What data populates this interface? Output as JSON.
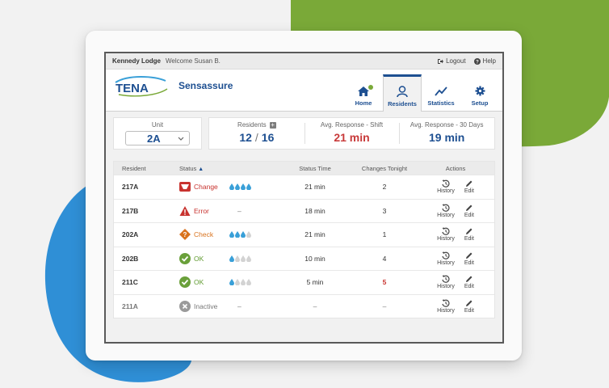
{
  "topbar": {
    "home_name": "Kennedy Lodge",
    "welcome": "Welcome Susan B.",
    "logout": "Logout",
    "help": "Help"
  },
  "header": {
    "logo": "TENA",
    "app_name": "Sensassure",
    "nav": [
      {
        "label": "Home",
        "icon": "home-icon",
        "status_dot": "#7aa938"
      },
      {
        "label": "Residents",
        "icon": "person-icon",
        "active": true
      },
      {
        "label": "Statistics",
        "icon": "chart-line-icon"
      },
      {
        "label": "Setup",
        "icon": "gear-icon"
      }
    ]
  },
  "stats": {
    "unit_label": "Unit",
    "unit_value": "2A",
    "residents_label": "Residents",
    "residents_current": "12",
    "residents_total": "16",
    "shift_label": "Avg. Response - Shift",
    "shift_value": "21 min",
    "days_label": "Avg. Response - 30 Days",
    "days_value": "19 min"
  },
  "table": {
    "headers": {
      "resident": "Resident",
      "status": "Status",
      "status_time": "Status Time",
      "changes": "Changes Tonight",
      "actions": "Actions"
    },
    "action_history": "History",
    "action_edit": "Edit",
    "rows": [
      {
        "id": "217A",
        "status": "Change",
        "level": 4,
        "time": "21 min",
        "changes": "2"
      },
      {
        "id": "217B",
        "status": "Error",
        "level": "–",
        "time": "18 min",
        "changes": "3"
      },
      {
        "id": "202A",
        "status": "Check",
        "level": 3,
        "time": "21 min",
        "changes": "1"
      },
      {
        "id": "202B",
        "status": "OK",
        "level": 1,
        "time": "10 min",
        "changes": "4"
      },
      {
        "id": "211C",
        "status": "OK",
        "level": 1,
        "time": "5 min",
        "changes": "5"
      },
      {
        "id": "211A",
        "status": "Inactive",
        "level": "–",
        "time": "–",
        "changes": "–"
      }
    ]
  },
  "colors": {
    "brand_blue": "#1d4f91",
    "green": "#7aa938",
    "red": "#c8332f",
    "orange": "#d9731e",
    "blob_blue": "#2f8fd6"
  }
}
